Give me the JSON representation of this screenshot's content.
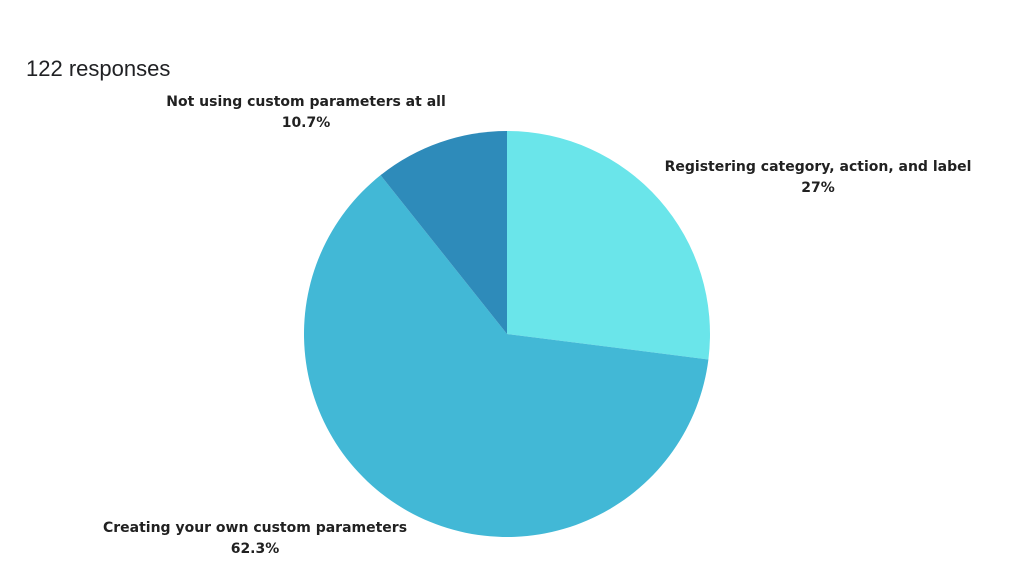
{
  "header": {
    "responses_text": "122 responses"
  },
  "chart_data": {
    "type": "pie",
    "start_angle_deg": 0,
    "direction": "clockwise",
    "slices": [
      {
        "label": "Registering category, action, and label",
        "value": 27.0,
        "value_label": "27%",
        "color": "#6ae5ea"
      },
      {
        "label": "Creating your own custom parameters",
        "value": 62.3,
        "value_label": "62.3%",
        "color": "#42b8d6"
      },
      {
        "label": "Not using custom parameters at all",
        "value": 10.7,
        "value_label": "10.7%",
        "color": "#2e8bba"
      }
    ]
  }
}
